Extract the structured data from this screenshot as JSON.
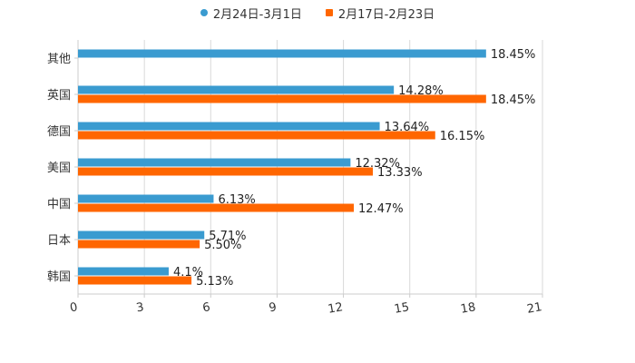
{
  "chart_data": {
    "type": "bar",
    "orientation": "horizontal",
    "categories": [
      "其他",
      "英国",
      "德国",
      "美国",
      "中国",
      "日本",
      "韩国"
    ],
    "series": [
      {
        "name": "2月24日-3月1日",
        "color": "#3a9bd0",
        "values": [
          18.45,
          14.28,
          13.64,
          12.32,
          6.13,
          5.71,
          4.1
        ],
        "labels": [
          "18.45%",
          "14.28%",
          "13.64%",
          "12.32%",
          "6.13%",
          "5.71%",
          "4.1%"
        ]
      },
      {
        "name": "2月17日-2月23日",
        "color": "#ff6600",
        "values": [
          null,
          18.45,
          16.15,
          13.33,
          12.47,
          5.5,
          5.13
        ],
        "labels": [
          "",
          "18.45%",
          "16.15%",
          "13.33%",
          "12.47%",
          "5.50%",
          "5.13%"
        ]
      }
    ],
    "xlim": [
      0,
      21
    ],
    "xticks": [
      0,
      3,
      6,
      9,
      12,
      15,
      18,
      21
    ],
    "xtick_labels": [
      "0",
      "3",
      "6",
      "9",
      "12",
      "15",
      "18",
      "21"
    ],
    "grid": true,
    "legend_position": "top-center"
  }
}
